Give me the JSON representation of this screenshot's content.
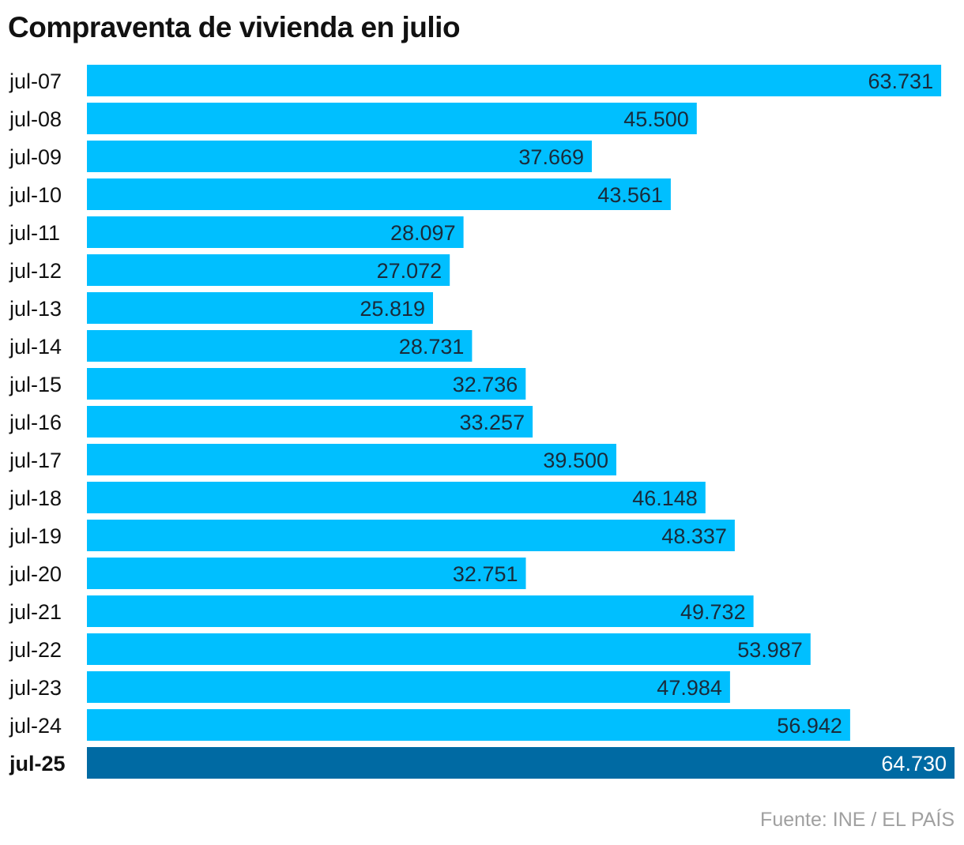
{
  "chart_data": {
    "type": "bar",
    "orientation": "horizontal",
    "title": "Compraventa de vivienda en julio",
    "source": "Fuente: INE / EL PAÍS",
    "categories": [
      "jul-07",
      "jul-08",
      "jul-09",
      "jul-10",
      "jul-11",
      "jul-12",
      "jul-13",
      "jul-14",
      "jul-15",
      "jul-16",
      "jul-17",
      "jul-18",
      "jul-19",
      "jul-20",
      "jul-21",
      "jul-22",
      "jul-23",
      "jul-24",
      "jul-25"
    ],
    "values": [
      63731,
      45500,
      37669,
      43561,
      28097,
      27072,
      25819,
      28731,
      32736,
      33257,
      39500,
      46148,
      48337,
      32751,
      49732,
      53987,
      47984,
      56942,
      64730
    ],
    "value_labels": [
      "63.731",
      "45.500",
      "37.669",
      "43.561",
      "28.097",
      "27.072",
      "25.819",
      "28.731",
      "32.736",
      "33.257",
      "39.500",
      "46.148",
      "48.337",
      "32.751",
      "49.732",
      "53.987",
      "47.984",
      "56.942",
      "64.730"
    ],
    "highlight_category": "jul-25",
    "xlim": [
      0,
      64730
    ],
    "grid": false,
    "colors": {
      "bar": "#00bfff",
      "highlight": "#006aa3"
    }
  }
}
